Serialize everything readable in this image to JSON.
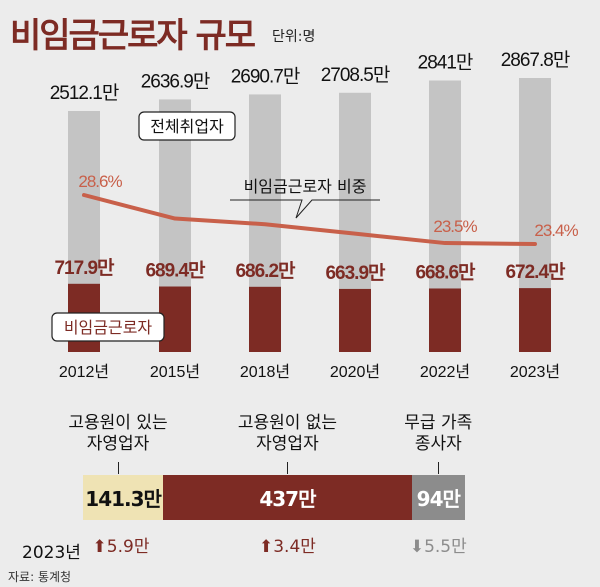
{
  "title": "비임금근로자 규모",
  "unit": "단위:명",
  "chart_data": {
    "type": "bar",
    "categories": [
      "2012년",
      "2015년",
      "2018년",
      "2020년",
      "2022년",
      "2023년"
    ],
    "series": [
      {
        "name": "전체취업자",
        "values": [
          2512.1,
          2636.9,
          2690.7,
          2708.5,
          2841,
          2867.8
        ],
        "labels": [
          "2512.1만",
          "2636.9만",
          "2690.7만",
          "2708.5만",
          "2841만",
          "2867.8만"
        ],
        "color": "#c4c4c4"
      },
      {
        "name": "비임금근로자",
        "values": [
          717.9,
          689.4,
          686.2,
          663.9,
          668.6,
          672.4
        ],
        "labels": [
          "717.9만",
          "689.4만",
          "686.2만",
          "663.9만",
          "668.6만",
          "672.4만"
        ],
        "color": "#7d2b24"
      },
      {
        "name": "비임금근로자 비중",
        "type": "line",
        "values": [
          28.6,
          26.1,
          25.5,
          24.5,
          23.5,
          23.4
        ],
        "labels": [
          "28.6%",
          "",
          "",
          "",
          "23.5%",
          "23.4%"
        ],
        "color": "#c8604a"
      }
    ],
    "unit": "만 명"
  },
  "breakdown": {
    "year": "2023년",
    "segments": [
      {
        "name": "고용원이 있는\n자영업자",
        "value": 141.3,
        "label": "141.3만",
        "change": "5.9만",
        "direction": "up",
        "color": "#efe3b4"
      },
      {
        "name": "고용원이 없는\n자영업자",
        "value": 437,
        "label": "437만",
        "change": "3.4만",
        "direction": "up",
        "color": "#7d2b24"
      },
      {
        "name": "무급 가족\n종사자",
        "value": 94,
        "label": "94만",
        "change": "5.5만",
        "direction": "down",
        "color": "#8c8c8c"
      }
    ]
  },
  "source": "자료: 통계청"
}
